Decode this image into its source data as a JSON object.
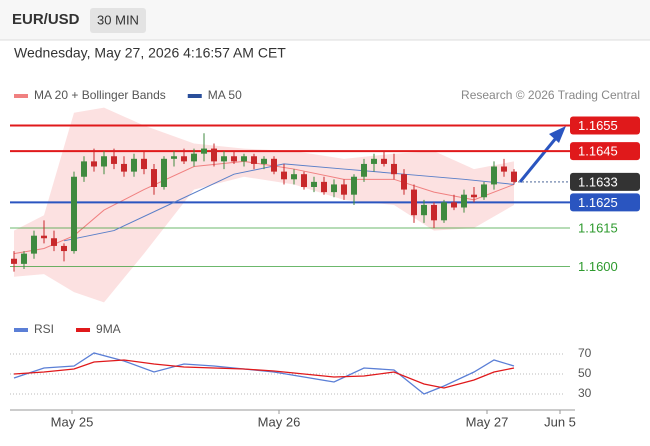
{
  "header": {
    "symbol": "EUR/USD",
    "interval": "30 MIN",
    "datetime": "Wednesday, May 27, 2026 4:16:57 AM CET"
  },
  "chart_data": [
    {
      "type": "candlestick",
      "legend": [
        {
          "name": "MA 20 + Bollinger Bands",
          "color": "#f08080"
        },
        {
          "name": "MA 50",
          "color": "#2a4f9a"
        }
      ],
      "credit": "Research © 2026 Trading Central",
      "up_color": "#3f8a3f",
      "down_color": "#c8282b",
      "candles": [
        [
          1.1603,
          1.1606,
          1.1598,
          1.1601
        ],
        [
          1.1601,
          1.1606,
          1.1599,
          1.1605
        ],
        [
          1.1605,
          1.1614,
          1.1603,
          1.1612
        ],
        [
          1.1612,
          1.1618,
          1.1609,
          1.1611
        ],
        [
          1.1611,
          1.1614,
          1.1606,
          1.1608
        ],
        [
          1.1608,
          1.1609,
          1.1602,
          1.1606
        ],
        [
          1.1606,
          1.1637,
          1.1605,
          1.1635
        ],
        [
          1.1635,
          1.1643,
          1.1633,
          1.1641
        ],
        [
          1.1641,
          1.1646,
          1.1637,
          1.1639
        ],
        [
          1.1639,
          1.1645,
          1.1636,
          1.1643
        ],
        [
          1.1643,
          1.1646,
          1.1638,
          1.164
        ],
        [
          1.164,
          1.1643,
          1.1635,
          1.1637
        ],
        [
          1.1637,
          1.1644,
          1.1635,
          1.1642
        ],
        [
          1.1642,
          1.1645,
          1.1636,
          1.1638
        ],
        [
          1.1638,
          1.164,
          1.1628,
          1.1631
        ],
        [
          1.1631,
          1.1643,
          1.163,
          1.1642
        ],
        [
          1.1642,
          1.1645,
          1.1639,
          1.1643
        ],
        [
          1.1643,
          1.1646,
          1.164,
          1.1641
        ],
        [
          1.1641,
          1.1646,
          1.1639,
          1.1644
        ],
        [
          1.1644,
          1.1652,
          1.1641,
          1.1646
        ],
        [
          1.1646,
          1.1648,
          1.1639,
          1.1641
        ],
        [
          1.1641,
          1.1645,
          1.1638,
          1.1643
        ],
        [
          1.1643,
          1.1645,
          1.164,
          1.1641
        ],
        [
          1.1641,
          1.1644,
          1.1639,
          1.1643
        ],
        [
          1.1643,
          1.1644,
          1.1638,
          1.164
        ],
        [
          1.164,
          1.1643,
          1.1638,
          1.1642
        ],
        [
          1.1642,
          1.1643,
          1.1636,
          1.1637
        ],
        [
          1.1637,
          1.164,
          1.1632,
          1.1634
        ],
        [
          1.1634,
          1.1638,
          1.1632,
          1.1636
        ],
        [
          1.1636,
          1.1637,
          1.163,
          1.1631
        ],
        [
          1.1631,
          1.1635,
          1.1629,
          1.1633
        ],
        [
          1.1633,
          1.1635,
          1.1628,
          1.1629
        ],
        [
          1.1629,
          1.1634,
          1.1627,
          1.1632
        ],
        [
          1.1632,
          1.1634,
          1.1626,
          1.1628
        ],
        [
          1.1628,
          1.1636,
          1.1624,
          1.1635
        ],
        [
          1.1635,
          1.1642,
          1.1633,
          1.164
        ],
        [
          1.164,
          1.1644,
          1.1637,
          1.1642
        ],
        [
          1.1642,
          1.1645,
          1.1639,
          1.164
        ],
        [
          1.164,
          1.1644,
          1.1634,
          1.1636
        ],
        [
          1.1636,
          1.1638,
          1.1628,
          1.163
        ],
        [
          1.163,
          1.1632,
          1.1617,
          1.162
        ],
        [
          1.162,
          1.1626,
          1.1617,
          1.1624
        ],
        [
          1.1624,
          1.1625,
          1.1615,
          1.1618
        ],
        [
          1.1618,
          1.1626,
          1.1617,
          1.1625
        ],
        [
          1.1625,
          1.1628,
          1.1622,
          1.1623
        ],
        [
          1.1623,
          1.163,
          1.1621,
          1.1628
        ],
        [
          1.1628,
          1.1631,
          1.1625,
          1.1627
        ],
        [
          1.1627,
          1.1633,
          1.1626,
          1.1632
        ],
        [
          1.1632,
          1.1641,
          1.163,
          1.1639
        ],
        [
          1.1639,
          1.1642,
          1.1635,
          1.1637
        ],
        [
          1.1637,
          1.1638,
          1.1632,
          1.1633
        ]
      ],
      "bands": {
        "x": [
          0,
          3,
          6,
          9,
          13,
          18,
          23,
          28,
          33,
          38,
          42,
          46,
          50
        ],
        "upper": [
          1.1614,
          1.162,
          1.166,
          1.1662,
          1.1655,
          1.1648,
          1.1646,
          1.1645,
          1.1642,
          1.1644,
          1.1645,
          1.1638,
          1.1641
        ],
        "lower": [
          1.1596,
          1.1597,
          1.159,
          1.1586,
          1.1605,
          1.163,
          1.1635,
          1.1632,
          1.1626,
          1.1624,
          1.1614,
          1.1615,
          1.1624
        ],
        "ma20": [
          1.1605,
          1.1607,
          1.1612,
          1.1622,
          1.163,
          1.1639,
          1.1641,
          1.1638,
          1.1634,
          1.1634,
          1.1629,
          1.1626,
          1.1632
        ]
      },
      "ma50": {
        "x": [
          5,
          10,
          16,
          22,
          27,
          33,
          39,
          45,
          50
        ],
        "values": [
          1.161,
          1.1614,
          1.1625,
          1.1636,
          1.164,
          1.1638,
          1.1636,
          1.1634,
          1.1632
        ]
      },
      "levels": [
        {
          "value": 1.1655,
          "label": "1.1655",
          "color": "#e0191b",
          "style": "box"
        },
        {
          "value": 1.1645,
          "label": "1.1645",
          "color": "#e0191b",
          "style": "box"
        },
        {
          "value": 1.1633,
          "label": "1.1633",
          "color": "#333333",
          "style": "current"
        },
        {
          "value": 1.1625,
          "label": "1.1625",
          "color": "#2a55c0",
          "style": "box"
        },
        {
          "value": 1.1615,
          "label": "1.1615",
          "color": "#2e9a2e",
          "style": "text"
        },
        {
          "value": 1.16,
          "label": "1.1600",
          "color": "#2e9a2e",
          "style": "text"
        }
      ],
      "xlim": [
        -0.4,
        55.1
      ],
      "ylim": [
        1.1583,
        1.1663
      ]
    },
    {
      "type": "line",
      "legend": [
        {
          "name": "RSI",
          "color": "#5b7fd6"
        },
        {
          "name": "9MA",
          "color": "#e0191b"
        }
      ],
      "x": [
        0,
        3,
        6,
        8,
        11,
        14,
        17,
        20,
        23,
        26,
        29,
        32,
        35,
        38,
        41,
        43,
        46,
        48,
        50
      ],
      "series": [
        {
          "name": "RSI",
          "color": "#5b7fd6",
          "values": [
            46,
            56,
            58,
            71,
            63,
            52,
            60,
            58,
            55,
            52,
            47,
            42,
            56,
            54,
            30,
            38,
            52,
            64,
            58
          ]
        },
        {
          "name": "9MA",
          "color": "#e0191b",
          "values": [
            50,
            52,
            55,
            62,
            64,
            60,
            57,
            56,
            55,
            53,
            50,
            47,
            48,
            52,
            40,
            36,
            44,
            52,
            56
          ]
        }
      ],
      "xlim": [
        -0.4,
        55.1
      ],
      "ylim": [
        19,
        84
      ],
      "yticks": [
        70,
        50,
        30
      ],
      "xticks": [
        {
          "value": 5.8,
          "label": "May 25"
        },
        {
          "value": 26.5,
          "label": "May 26"
        },
        {
          "value": 47.3,
          "label": "May 27"
        },
        {
          "value": 54.6,
          "label": "Jun 5"
        }
      ]
    }
  ]
}
